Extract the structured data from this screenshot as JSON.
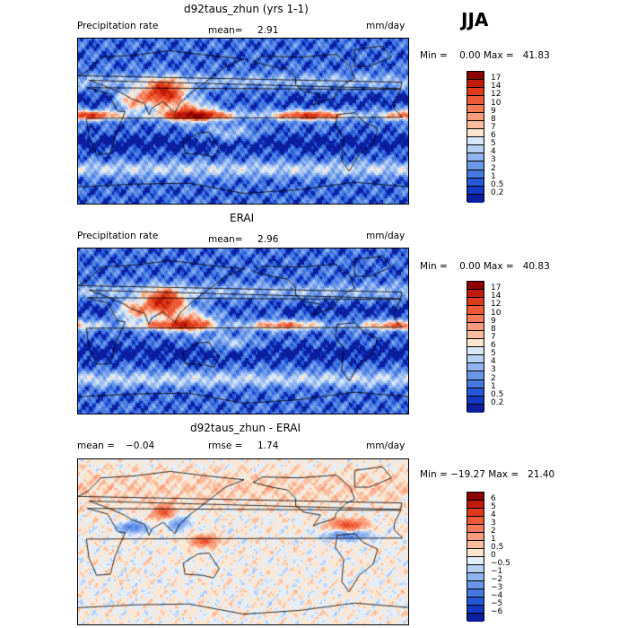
{
  "season": "JJA",
  "panels": [
    {
      "title": "d92taus_zhun (yrs 1-1)",
      "left_label": "Precipitation rate",
      "mid_label": "mean=",
      "mid_value": "2.91",
      "unit": "mm/day",
      "minmax": "Min =    0.00 Max =   41.83"
    },
    {
      "title": "ERAI",
      "left_label": "Precipitation rate",
      "mid_label": "mean=",
      "mid_value": "2.96",
      "unit": "mm/day",
      "minmax": "Min =    0.00 Max =   40.83"
    },
    {
      "title": "d92taus_zhun - ERAI",
      "left_label": "mean =",
      "left_value": "−0.04",
      "mid_label": "rmse =",
      "mid_value": "1.74",
      "unit": "mm/day",
      "minmax": "Min = −19.27 Max =   21.40"
    }
  ],
  "colorbars": {
    "precip": {
      "labels": [
        "17",
        "14",
        "12",
        "10",
        "9",
        "8",
        "7",
        "6",
        "5",
        "4",
        "3",
        "2",
        "1",
        "0.5",
        "0.2"
      ],
      "colors": [
        "#8b0000",
        "#c01a0a",
        "#dd3a1a",
        "#ee5a36",
        "#f47a58",
        "#f89c7c",
        "#fbbd9e",
        "#fde6cf",
        "#d8e8f8",
        "#b6d0f4",
        "#8fb4ef",
        "#6a96e8",
        "#4679e0",
        "#2558d8",
        "#1238c4",
        "#0a1e9e"
      ]
    },
    "diff": {
      "labels": [
        "6",
        "5",
        "4",
        "3",
        "2",
        "1",
        "0.5",
        "0",
        "−0.5",
        "−1",
        "−2",
        "−3",
        "−4",
        "−5",
        "−6"
      ],
      "colors": [
        "#8b0000",
        "#c01a0a",
        "#dd3a1a",
        "#ee5a36",
        "#f47a58",
        "#f89c7c",
        "#fbbd9e",
        "#fde6cf",
        "#e4eefa",
        "#b6d0f4",
        "#8fb4ef",
        "#6a96e8",
        "#4679e0",
        "#2558d8",
        "#1238c4",
        "#0a1e9e"
      ]
    }
  },
  "chart_data": [
    {
      "type": "heatmap",
      "title": "d92taus_zhun (yrs 1-1)",
      "variable": "Precipitation rate",
      "units": "mm/day",
      "mean": 2.91,
      "min": 0.0,
      "max": 41.83,
      "contour_levels": [
        0.2,
        0.5,
        1,
        2,
        3,
        4,
        5,
        6,
        7,
        8,
        9,
        10,
        12,
        14,
        17
      ]
    },
    {
      "type": "heatmap",
      "title": "ERAI",
      "variable": "Precipitation rate",
      "units": "mm/day",
      "mean": 2.96,
      "min": 0.0,
      "max": 40.83,
      "contour_levels": [
        0.2,
        0.5,
        1,
        2,
        3,
        4,
        5,
        6,
        7,
        8,
        9,
        10,
        12,
        14,
        17
      ]
    },
    {
      "type": "heatmap",
      "title": "d92taus_zhun - ERAI",
      "units": "mm/day",
      "mean": -0.04,
      "rmse": 1.74,
      "min": -19.27,
      "max": 21.4,
      "contour_levels": [
        -6,
        -5,
        -4,
        -3,
        -2,
        -1,
        -0.5,
        0,
        0.5,
        1,
        2,
        3,
        4,
        5,
        6
      ]
    }
  ]
}
